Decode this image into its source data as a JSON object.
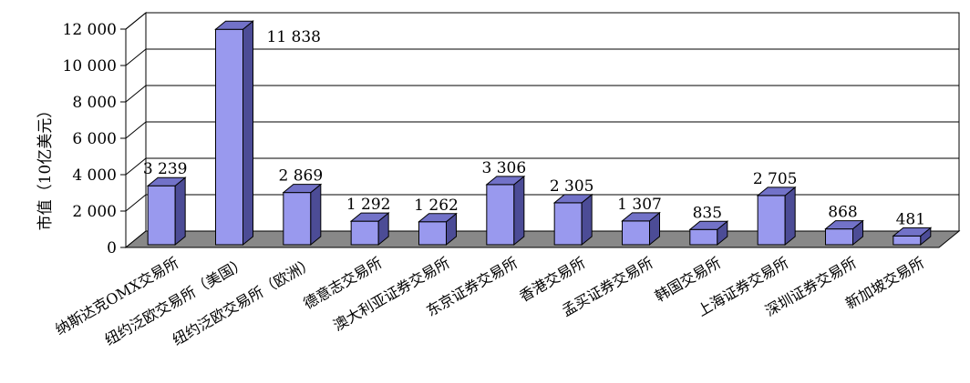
{
  "chart_data": {
    "type": "bar",
    "style": "3d-column",
    "ylabel": "市值（10亿美元）",
    "ylim": [
      0,
      12000
    ],
    "yticks": [
      0,
      2000,
      4000,
      6000,
      8000,
      10000,
      12000
    ],
    "ytick_labels": [
      "0",
      "2 000",
      "4 000",
      "6 000",
      "8 000",
      "10 000",
      "12 000"
    ],
    "grid": true,
    "categories": [
      "纳斯达克OMX交易所",
      "纽约泛欧交易所（美国）",
      "纽约泛欧交易所（欧洲）",
      "德意志交易所",
      "澳大利亚证券交易所",
      "东京证券交易所",
      "香港交易所",
      "孟买证券交易所",
      "韩国交易所",
      "上海证券交易所",
      "深圳证券交易所",
      "新加坡交易所"
    ],
    "values": [
      3239,
      11838,
      2869,
      1292,
      1262,
      3306,
      2305,
      1307,
      835,
      2705,
      868,
      481
    ],
    "data_labels": [
      "3 239",
      "11 838",
      "2 869",
      "1 292",
      "1 262",
      "3 306",
      "2 305",
      "1 307",
      "835",
      "2 705",
      "868",
      "481"
    ],
    "colors": {
      "bar_front": "#9999ee",
      "bar_side": "#4c4c96",
      "bar_top": "#7272c8",
      "floor": "#888888",
      "grid": "#000000"
    }
  }
}
